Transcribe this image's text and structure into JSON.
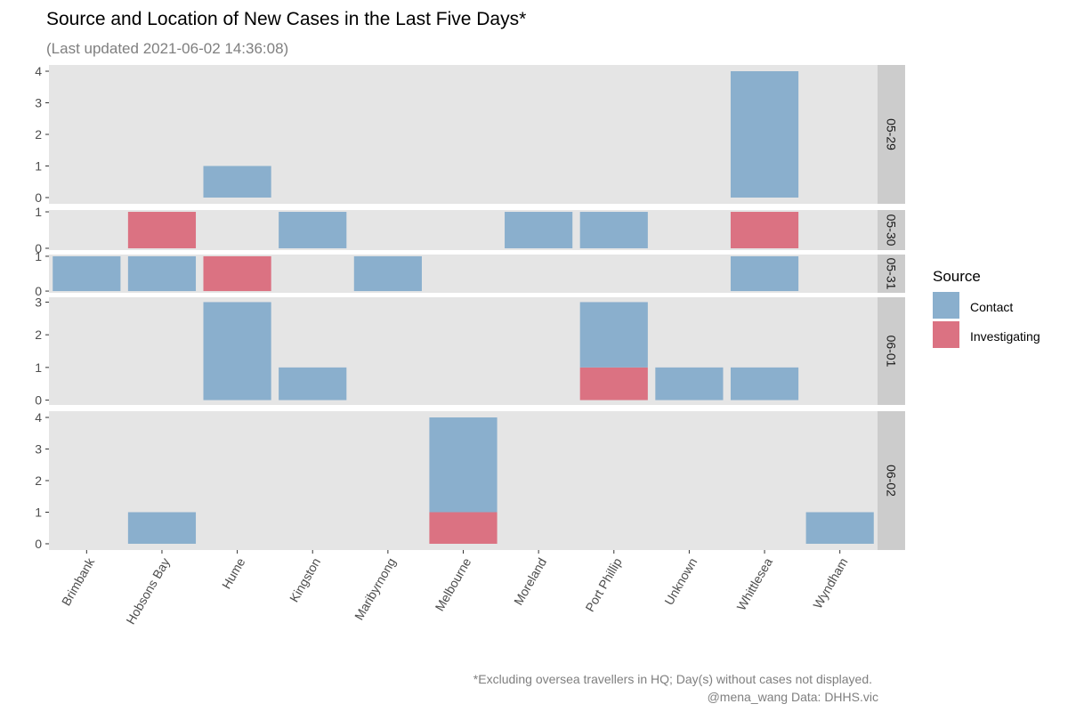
{
  "title": "Source and Location of New Cases in the Last Five Days*",
  "subtitle": "(Last updated 2021-06-02 14:36:08)",
  "caption": {
    "line1": "*Excluding oversea travellers in HQ; Day(s) without cases not displayed.",
    "line2": "@mena_wang   Data: DHHS.vic"
  },
  "colors": {
    "Contact": "#8aafcd",
    "Investigating": "#db7282",
    "panel_bg": "#e5e5e5",
    "strip_bg": "#cccccc"
  },
  "chart_data": {
    "type": "bar",
    "stacked": true,
    "faceted_by": "date",
    "title": "Source and Location of New Cases in the Last Five Days*",
    "subtitle": "(Last updated 2021-06-02 14:36:08)",
    "categories": [
      "Brimbank",
      "Hobsons Bay",
      "Hume",
      "Kingston",
      "Maribyrnong",
      "Melbourne",
      "Moreland",
      "Port Phillip",
      "Unknown",
      "Whittlesea",
      "Wyndham"
    ],
    "legend": {
      "title": "Source",
      "position": "right",
      "entries": [
        "Contact",
        "Investigating"
      ]
    },
    "grid": false,
    "panels": [
      {
        "label": "05-29",
        "ylim": [
          0,
          4
        ],
        "yticks": [
          "0",
          "1",
          "2",
          "3",
          "4"
        ],
        "series": [
          {
            "name": "Contact",
            "values": [
              0,
              0,
              1,
              0,
              0,
              0,
              0,
              0,
              0,
              4,
              0
            ]
          },
          {
            "name": "Investigating",
            "values": [
              0,
              0,
              0,
              0,
              0,
              0,
              0,
              0,
              0,
              0,
              0
            ]
          }
        ]
      },
      {
        "label": "05-30",
        "ylim": [
          0,
          1
        ],
        "yticks": [
          "0",
          "1"
        ],
        "series": [
          {
            "name": "Contact",
            "values": [
              0,
              0,
              0,
              1,
              0,
              0,
              1,
              1,
              0,
              0,
              0
            ]
          },
          {
            "name": "Investigating",
            "values": [
              0,
              1,
              0,
              0,
              0,
              0,
              0,
              0,
              0,
              1,
              0
            ]
          }
        ]
      },
      {
        "label": "05-31",
        "ylim": [
          0,
          1
        ],
        "yticks": [
          "0",
          "1"
        ],
        "series": [
          {
            "name": "Contact",
            "values": [
              1,
              1,
              0,
              0,
              1,
              0,
              0,
              0,
              0,
              1,
              0
            ]
          },
          {
            "name": "Investigating",
            "values": [
              0,
              0,
              1,
              0,
              0,
              0,
              0,
              0,
              0,
              0,
              0
            ]
          }
        ]
      },
      {
        "label": "06-01",
        "ylim": [
          0,
          3
        ],
        "yticks": [
          "0",
          "1",
          "2",
          "3"
        ],
        "series": [
          {
            "name": "Contact",
            "values": [
              0,
              0,
              3,
              1,
              0,
              0,
              0,
              2,
              1,
              1,
              0
            ]
          },
          {
            "name": "Investigating",
            "values": [
              0,
              0,
              0,
              0,
              0,
              0,
              0,
              1,
              0,
              0,
              0
            ]
          }
        ]
      },
      {
        "label": "06-02",
        "ylim": [
          0,
          4
        ],
        "yticks": [
          "0",
          "1",
          "2",
          "3",
          "4"
        ],
        "series": [
          {
            "name": "Contact",
            "values": [
              0,
              1,
              0,
              0,
              0,
              3,
              0,
              0,
              0,
              0,
              1
            ]
          },
          {
            "name": "Investigating",
            "values": [
              0,
              0,
              0,
              0,
              0,
              1,
              0,
              0,
              0,
              0,
              0
            ]
          }
        ]
      }
    ]
  }
}
